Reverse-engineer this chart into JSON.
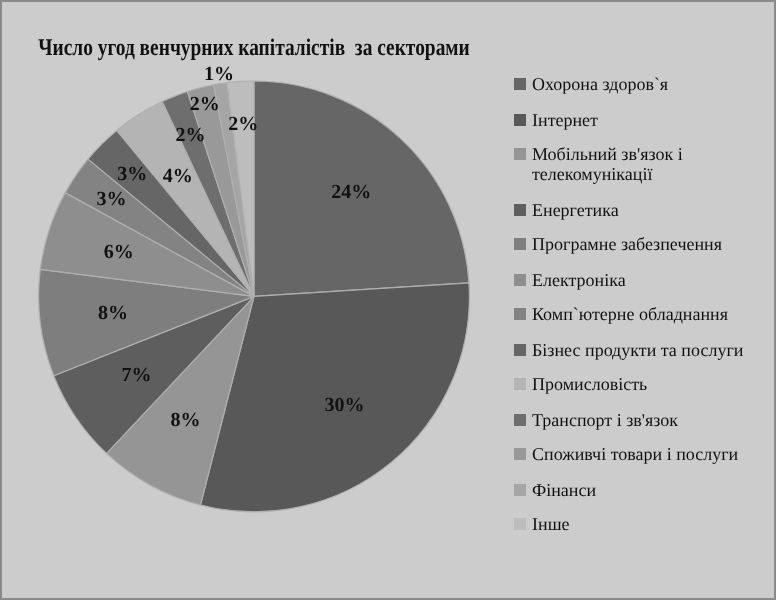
{
  "chart_data": {
    "type": "pie",
    "title": "Число угод венчурних капіталістів  за секторами",
    "categories": [
      "Охорона здоров`я",
      "Інтернет",
      "Мобільний зв'язок і телекомунікації",
      "Енергетика",
      "Програмне забезпечення",
      "Електроніка",
      "Комп`ютерне обладнання",
      "Бізнес продукти та послуги",
      "Промисловість",
      "Транспорт і зв'язок",
      "Споживчі товари і послуги",
      "Фінанси",
      "Інше"
    ],
    "values": [
      24,
      30,
      8,
      7,
      8,
      6,
      3,
      3,
      4,
      2,
      2,
      1,
      2
    ],
    "value_labels": [
      "24%",
      "30%",
      "8%",
      "7%",
      "8%",
      "6%",
      "3%",
      "3%",
      "4%",
      "2%",
      "2%",
      "1%",
      "2%"
    ],
    "colors": [
      "#666666",
      "#585858",
      "#959595",
      "#5e5e5e",
      "#7e7e7e",
      "#8e8e8e",
      "#838383",
      "#666666",
      "#b4b4b4",
      "#6e6e6e",
      "#999999",
      "#a5a5a5",
      "#bdbdbd"
    ],
    "legend": "right"
  }
}
